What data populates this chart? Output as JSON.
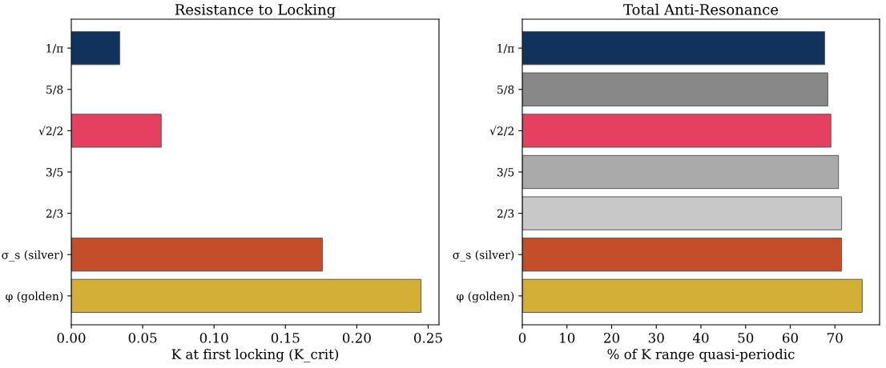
{
  "chart_data": [
    {
      "type": "bar",
      "orientation": "horizontal",
      "title": "Resistance to Locking",
      "xlabel": "K at first locking (K_crit)",
      "categories": [
        "1/π",
        "5/8",
        "√2/2",
        "3/5",
        "2/3",
        "σ_s (silver)",
        "φ (golden)"
      ],
      "values": [
        0.034,
        0,
        0.063,
        0,
        0,
        0.176,
        0.245
      ],
      "colors": [
        "#12325e",
        "#888888",
        "#e54060",
        "#aaaaaa",
        "#c8c8c8",
        "#c44d2a",
        "#d4af37"
      ],
      "xlim": [
        0,
        0.2576
      ],
      "xticks": [
        {
          "value": 0,
          "label": "0.00"
        },
        {
          "value": 0.05,
          "label": "0.05"
        },
        {
          "value": 0.1,
          "label": "0.10"
        },
        {
          "value": 0.15,
          "label": "0.15"
        },
        {
          "value": 0.2,
          "label": "0.20"
        },
        {
          "value": 0.25,
          "label": "0.25"
        }
      ],
      "grid": false,
      "legend": false
    },
    {
      "type": "bar",
      "orientation": "horizontal",
      "title": "Total Anti-Resonance",
      "xlabel": "% of K range quasi-periodic",
      "categories": [
        "1/π",
        "5/8",
        "√2/2",
        "3/5",
        "2/3",
        "σ_s (silver)",
        "φ (golden)"
      ],
      "values": [
        67.7,
        68.4,
        69.1,
        70.8,
        71.5,
        71.5,
        76.1
      ],
      "colors": [
        "#12325e",
        "#888888",
        "#e54060",
        "#aaaaaa",
        "#c8c8c8",
        "#c44d2a",
        "#d4af37"
      ],
      "xlim": [
        0,
        80
      ],
      "xticks": [
        0,
        10,
        20,
        30,
        40,
        50,
        60,
        70
      ],
      "grid": false,
      "legend": false
    }
  ]
}
